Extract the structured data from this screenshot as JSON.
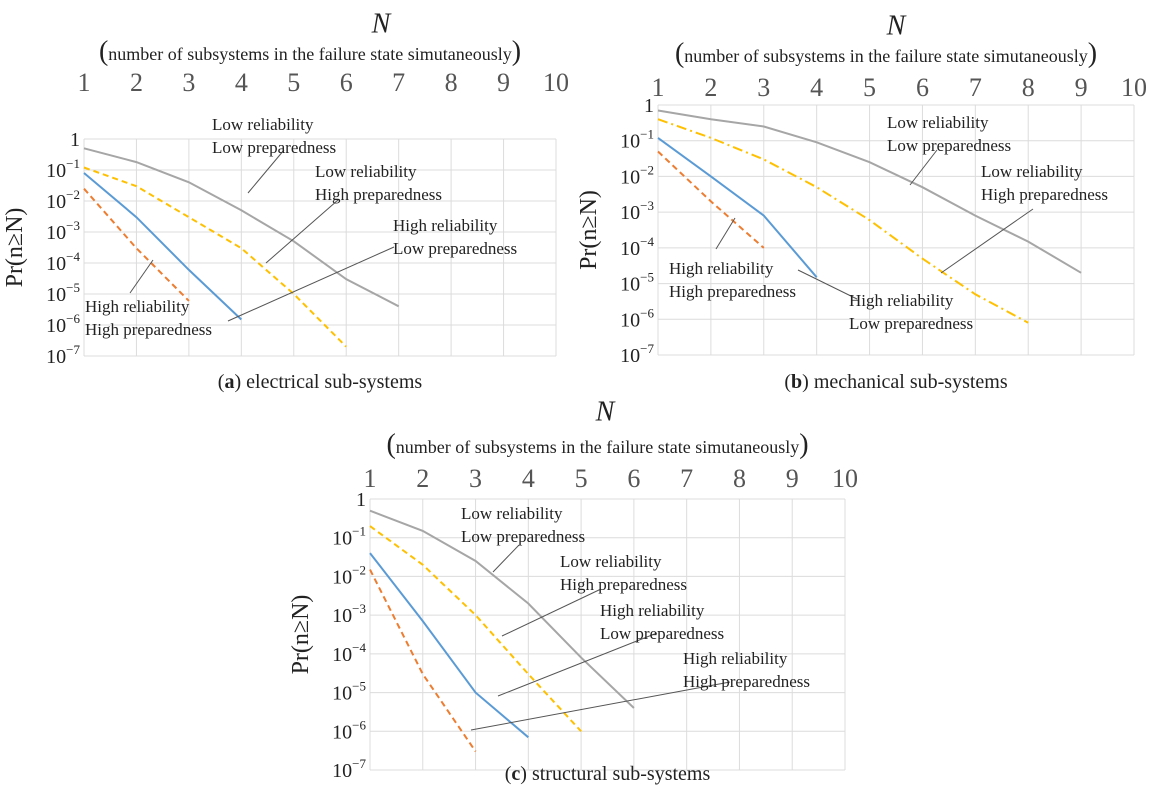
{
  "colors": {
    "low_rel_low_prep": "#a6a6a6",
    "low_rel_high_prep": "#ffc000",
    "high_rel_low_prep": "#5b9bd5",
    "high_rel_high_prep": "#ed7d31",
    "grid": "#dcdcdc",
    "leader": "#555555"
  },
  "chart_data": [
    {
      "type": "line",
      "caption_letter": "a",
      "caption_text": " electrical sub-systems",
      "xlabel": "N",
      "xlabel_sub": "number of subsystems in the failure state simutaneously",
      "ylabel": "Pr(n≥N)",
      "x_ticks": [
        "1",
        "2",
        "3",
        "4",
        "5",
        "6",
        "7",
        "8",
        "9",
        "10"
      ],
      "y_ticks": [
        "1",
        "10",
        "10",
        "10",
        "10",
        "10",
        "10",
        "10"
      ],
      "y_tick_exponents": [
        "",
        "-1",
        "-2",
        "-3",
        "-4",
        "-5",
        "-6",
        "-7"
      ],
      "xlim": [
        1,
        10
      ],
      "ylim": [
        1e-07,
        1
      ],
      "yscale": "log",
      "grid": true,
      "series": [
        {
          "key": "low_rel_low_prep",
          "dash": "solid",
          "x": [
            1,
            2,
            3,
            4,
            5,
            6,
            7
          ],
          "y": [
            0.5,
            0.18,
            0.04,
            0.005,
            0.0005,
            3e-05,
            4e-06
          ]
        },
        {
          "key": "low_rel_high_prep",
          "dash": "dashed",
          "x": [
            1,
            2,
            3,
            4,
            5,
            6
          ],
          "y": [
            0.12,
            0.03,
            0.003,
            0.0003,
            1e-05,
            2e-07
          ]
        },
        {
          "key": "high_rel_low_prep",
          "dash": "solid",
          "x": [
            1,
            2,
            3,
            4
          ],
          "y": [
            0.08,
            0.003,
            6e-05,
            1.5e-06
          ]
        },
        {
          "key": "high_rel_high_prep",
          "dash": "dashed",
          "x": [
            1,
            2,
            3
          ],
          "y": [
            0.025,
            0.0003,
            6e-06
          ]
        }
      ],
      "annotations": [
        {
          "line1": "Low reliability",
          "line2": "Low preparedness"
        },
        {
          "line1": "Low reliability",
          "line2": "High preparedness"
        },
        {
          "line1": "High reliability",
          "line2": "Low preparedness"
        },
        {
          "line1": "High reliability",
          "line2": "High preparedness"
        }
      ]
    },
    {
      "type": "line",
      "caption_letter": "b",
      "caption_text": " mechanical sub-systems",
      "xlabel": "N",
      "xlabel_sub": "number of subsystems in the failure state simutaneously",
      "ylabel": "Pr(n≥N)",
      "x_ticks": [
        "1",
        "2",
        "3",
        "4",
        "5",
        "6",
        "7",
        "8",
        "9",
        "10"
      ],
      "y_ticks": [
        "1",
        "10",
        "10",
        "10",
        "10",
        "10",
        "10",
        "10"
      ],
      "y_tick_exponents": [
        "",
        "-1",
        "-2",
        "-3",
        "-4",
        "-5",
        "-6",
        "-7"
      ],
      "xlim": [
        1,
        10
      ],
      "ylim": [
        1e-07,
        1
      ],
      "yscale": "log",
      "grid": true,
      "series": [
        {
          "key": "low_rel_low_prep",
          "dash": "solid",
          "x": [
            1,
            2,
            3,
            4,
            5,
            6,
            7,
            8,
            9
          ],
          "y": [
            0.7,
            0.4,
            0.25,
            0.09,
            0.025,
            0.005,
            0.0008,
            0.00015,
            2e-05
          ]
        },
        {
          "key": "low_rel_high_prep",
          "dash": "dashdot",
          "x": [
            1,
            2,
            3,
            4,
            5,
            6,
            7,
            8
          ],
          "y": [
            0.4,
            0.12,
            0.03,
            0.005,
            0.0006,
            5e-05,
            5e-06,
            8e-07
          ]
        },
        {
          "key": "high_rel_low_prep",
          "dash": "solid",
          "x": [
            1,
            2,
            3,
            4
          ],
          "y": [
            0.12,
            0.01,
            0.0008,
            1.5e-05
          ]
        },
        {
          "key": "high_rel_high_prep",
          "dash": "dashed",
          "x": [
            1,
            2,
            3
          ],
          "y": [
            0.05,
            0.002,
            0.0001
          ]
        }
      ],
      "annotations": [
        {
          "line1": "Low reliability",
          "line2": "Low preparedness"
        },
        {
          "line1": "Low reliability",
          "line2": "High preparedness"
        },
        {
          "line1": "High reliability",
          "line2": "High preparedness"
        },
        {
          "line1": "High reliability",
          "line2": "Low preparedness"
        }
      ]
    },
    {
      "type": "line",
      "caption_letter": "c",
      "caption_text": " structural sub-systems",
      "xlabel": "N",
      "xlabel_sub": "number of subsystems in the failure state simutaneously",
      "ylabel": "Pr(n≥N)",
      "x_ticks": [
        "1",
        "2",
        "3",
        "4",
        "5",
        "6",
        "7",
        "8",
        "9",
        "10"
      ],
      "y_ticks": [
        "1",
        "10",
        "10",
        "10",
        "10",
        "10",
        "10",
        "10"
      ],
      "y_tick_exponents": [
        "",
        "-1",
        "-2",
        "-3",
        "-4",
        "-5",
        "-6",
        "-7"
      ],
      "xlim": [
        1,
        10
      ],
      "ylim": [
        1e-07,
        1
      ],
      "yscale": "log",
      "grid": true,
      "series": [
        {
          "key": "low_rel_low_prep",
          "dash": "solid",
          "x": [
            1,
            2,
            3,
            4,
            5,
            6
          ],
          "y": [
            0.5,
            0.15,
            0.025,
            0.002,
            8e-05,
            4e-06
          ]
        },
        {
          "key": "low_rel_high_prep",
          "dash": "dashed",
          "x": [
            1,
            2,
            3,
            4,
            5
          ],
          "y": [
            0.2,
            0.02,
            0.001,
            3e-05,
            1e-06
          ]
        },
        {
          "key": "high_rel_low_prep",
          "dash": "solid",
          "x": [
            1,
            2,
            3,
            4
          ],
          "y": [
            0.04,
            0.0007,
            1e-05,
            7e-07
          ]
        },
        {
          "key": "high_rel_high_prep",
          "dash": "dashed",
          "x": [
            1,
            2,
            3
          ],
          "y": [
            0.015,
            3e-05,
            3e-07
          ]
        }
      ],
      "annotations": [
        {
          "line1": "Low reliability",
          "line2": "Low preparedness"
        },
        {
          "line1": "Low reliability",
          "line2": "High preparedness"
        },
        {
          "line1": "High reliability",
          "line2": "Low preparedness"
        },
        {
          "line1": "High reliability",
          "line2": "High preparedness"
        }
      ]
    }
  ]
}
